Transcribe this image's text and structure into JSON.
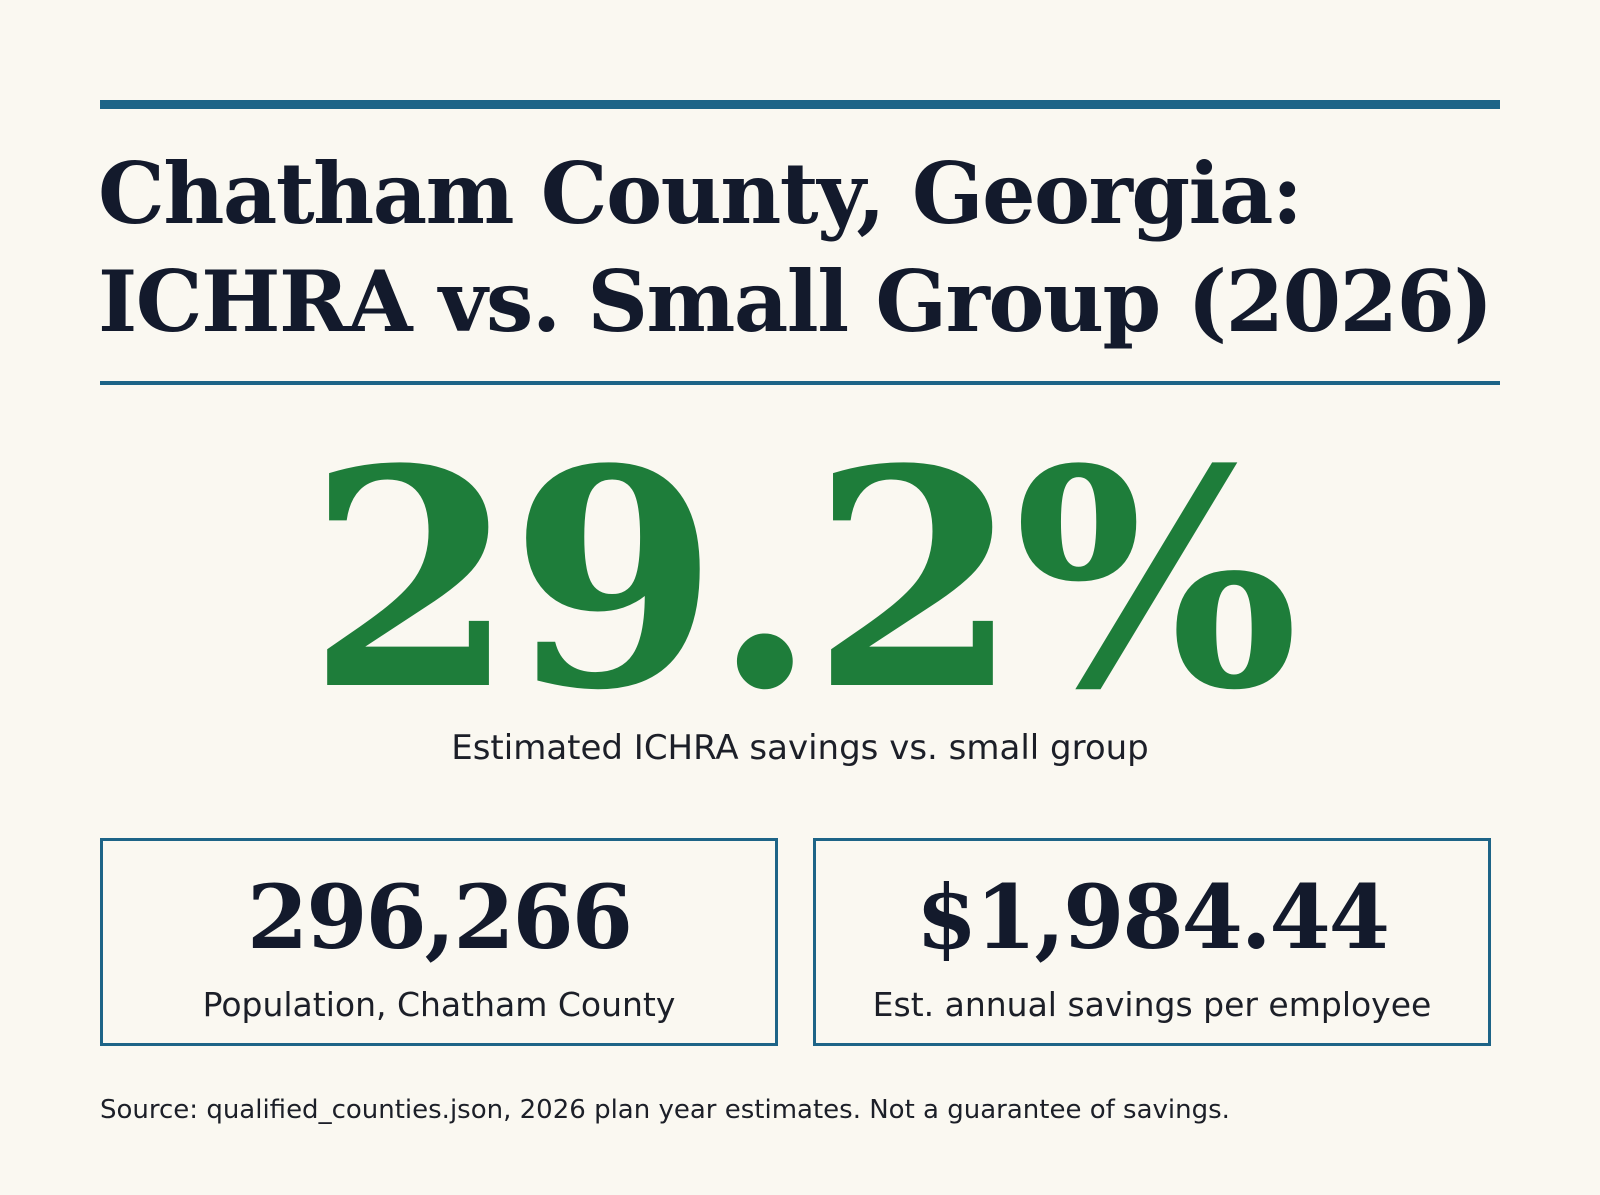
{
  "header": {
    "title_line1": "Chatham County, Georgia:",
    "title_line2": "ICHRA vs. Small Group (2026)"
  },
  "hero": {
    "value": "29.2%",
    "label": "Estimated ICHRA savings vs. small group"
  },
  "stats": [
    {
      "value": "296,266",
      "label": "Population, Chatham County"
    },
    {
      "value": "$1,984.44",
      "label": "Est. annual savings per employee"
    }
  ],
  "footer": {
    "source": "Source: qualified_counties.json, 2026 plan year estimates. Not a guarantee of savings."
  },
  "colors": {
    "accent_rule": "#1d6487",
    "hero_green": "#1e7d3a",
    "background": "#faf8f1",
    "text_dark": "#131a2c"
  }
}
